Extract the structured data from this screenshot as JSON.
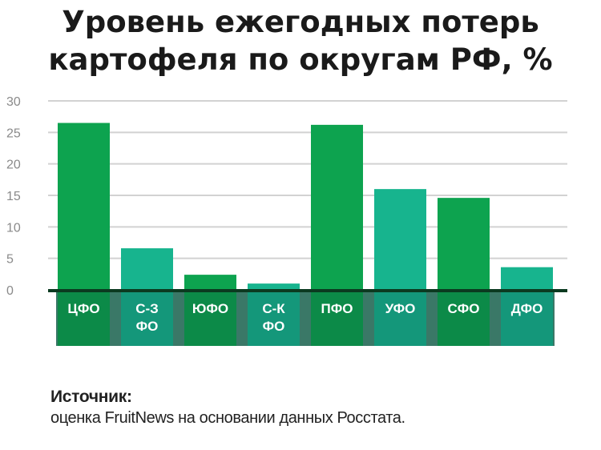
{
  "header": {
    "title_line1": "Уровень ежегодных потерь",
    "title_line2": "картофеля по округам РФ, %"
  },
  "source": {
    "label": "Источник:",
    "text": "оценка FruitNews на основании данных Росстата."
  },
  "colors": {
    "dark_green": "#0da34f",
    "teal": "#17b48e",
    "dark_green_band": "#0c8a48",
    "teal_band": "#14977a",
    "band_gap": "#3a7867",
    "baseline": "#0b3a20",
    "grid": "#d2d2d2",
    "tick_text": "#8a8a8a"
  },
  "chart_data": {
    "type": "bar",
    "categories": [
      [
        "ЦФО"
      ],
      [
        "С-З",
        "ФО"
      ],
      [
        "ЮФО"
      ],
      [
        "С-К",
        "ФО"
      ],
      [
        "ПФО"
      ],
      [
        "УФО"
      ],
      [
        "СФО"
      ],
      [
        "ДФО"
      ]
    ],
    "values": [
      26.5,
      6.6,
      2.4,
      1.0,
      26.2,
      16.0,
      14.6,
      3.6
    ],
    "bar_colors": [
      "dark_green",
      "teal",
      "dark_green",
      "teal",
      "dark_green",
      "teal",
      "dark_green",
      "teal"
    ],
    "ylim": [
      0,
      30
    ],
    "yticks": [
      0,
      5,
      10,
      15,
      20,
      25,
      30
    ],
    "grid": true,
    "legend": "none"
  }
}
